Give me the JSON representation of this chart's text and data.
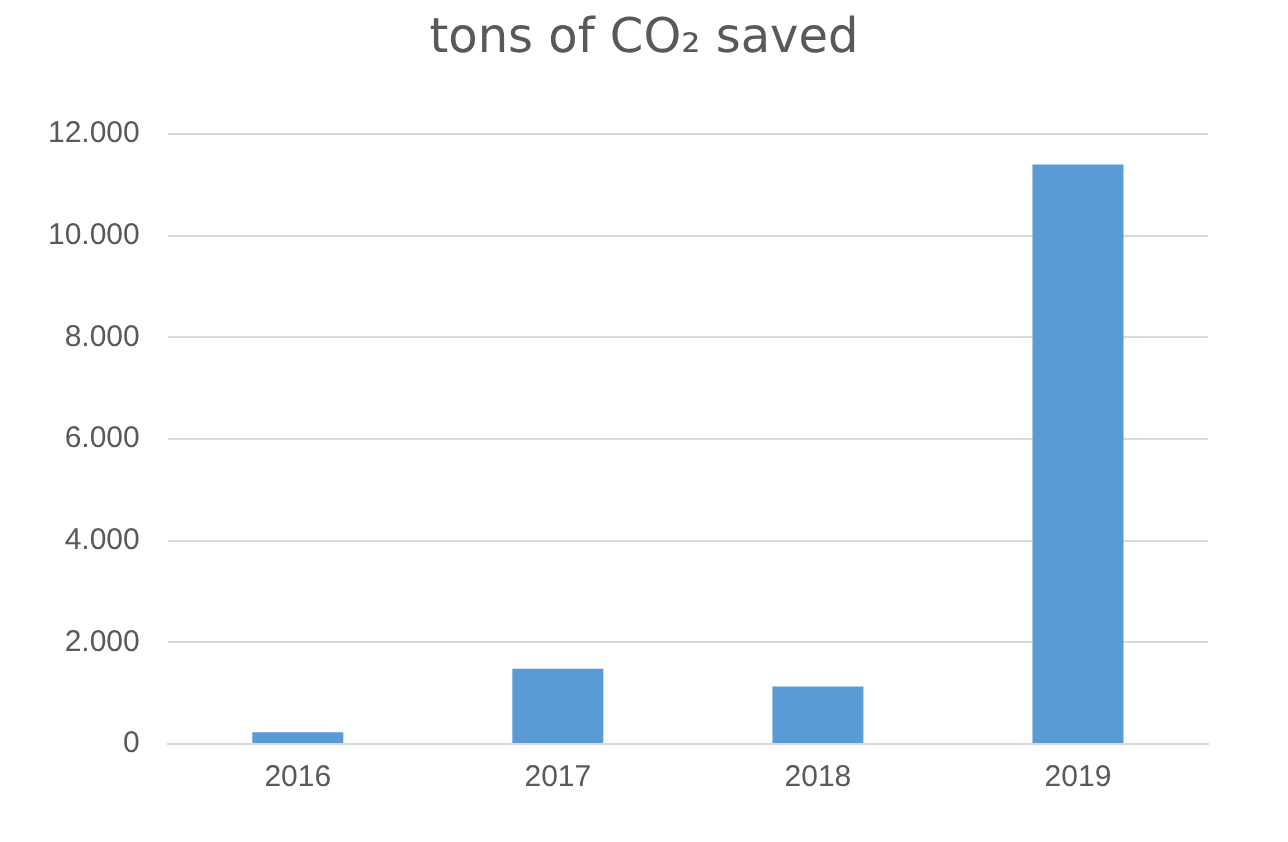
{
  "chart_data": {
    "type": "bar",
    "title": "tons of CO₂ saved",
    "categories": [
      "2016",
      "2017",
      "2018",
      "2019"
    ],
    "values": [
      230,
      1480,
      1130,
      11400
    ],
    "color": "#5b9bd5",
    "ylim": [
      0,
      12000
    ],
    "yticks": [
      {
        "value": 0,
        "label": "0"
      },
      {
        "value": 2000,
        "label": "2.000"
      },
      {
        "value": 4000,
        "label": "4.000"
      },
      {
        "value": 6000,
        "label": "6.000"
      },
      {
        "value": 8000,
        "label": "8.000"
      },
      {
        "value": 10000,
        "label": "10.000"
      },
      {
        "value": 12000,
        "label": "12.000"
      }
    ],
    "grid": "y",
    "legend": false
  }
}
